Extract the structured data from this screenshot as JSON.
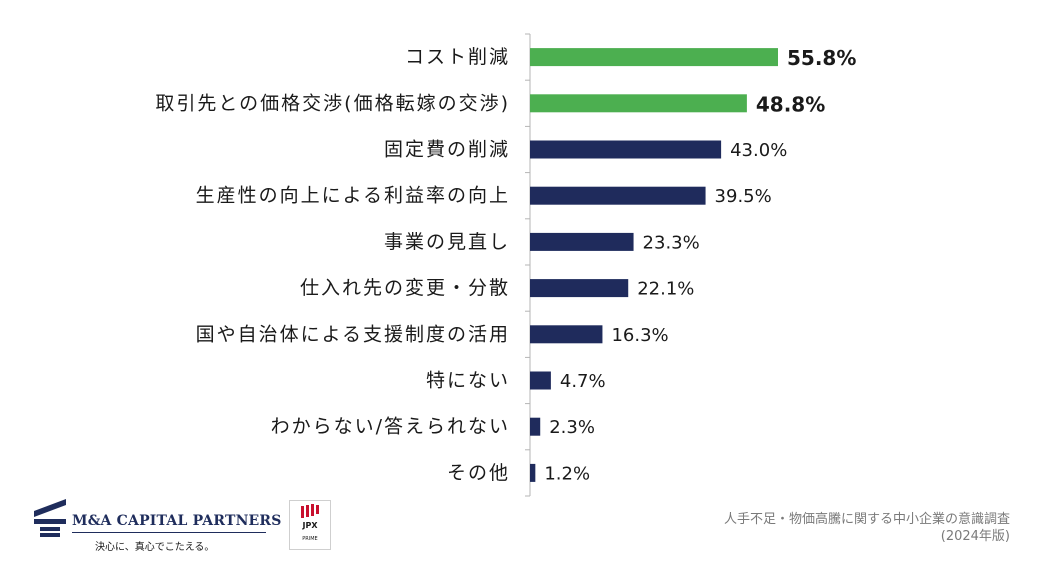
{
  "chart_data": {
    "type": "bar",
    "orientation": "horizontal",
    "categories": [
      "コスト削減",
      "取引先との価格交渉(価格転嫁の交渉)",
      "固定費の削減",
      "生産性の向上による利益率の向上",
      "事業の見直し",
      "仕入れ先の変更・分散",
      "国や自治体による支援制度の活用",
      "特にない",
      "わからない/答えられない",
      "その他"
    ],
    "values": [
      55.8,
      48.8,
      43.0,
      39.5,
      23.3,
      22.1,
      16.3,
      4.7,
      2.3,
      1.2
    ],
    "value_labels": [
      "55.8%",
      "48.8%",
      "43.0%",
      "39.5%",
      "23.3%",
      "22.1%",
      "16.3%",
      "4.7%",
      "2.3%",
      "1.2%"
    ],
    "highlighted": [
      0,
      1
    ],
    "colors": {
      "highlight": "#4caf50",
      "default": "#1f2b5c",
      "axis": "#b5b5b5"
    },
    "xlim": [
      0,
      100
    ],
    "grid": false,
    "legend": "none"
  },
  "logo": {
    "company": "M&A CAPITAL PARTNERS",
    "tagline": "決心に、真心でこたえる。",
    "badge_main": "JPX",
    "badge_sub": "PRIME"
  },
  "source": {
    "line1": "人手不足・物価高騰に関する中小企業の意識調査",
    "line2": "(2024年版)"
  }
}
